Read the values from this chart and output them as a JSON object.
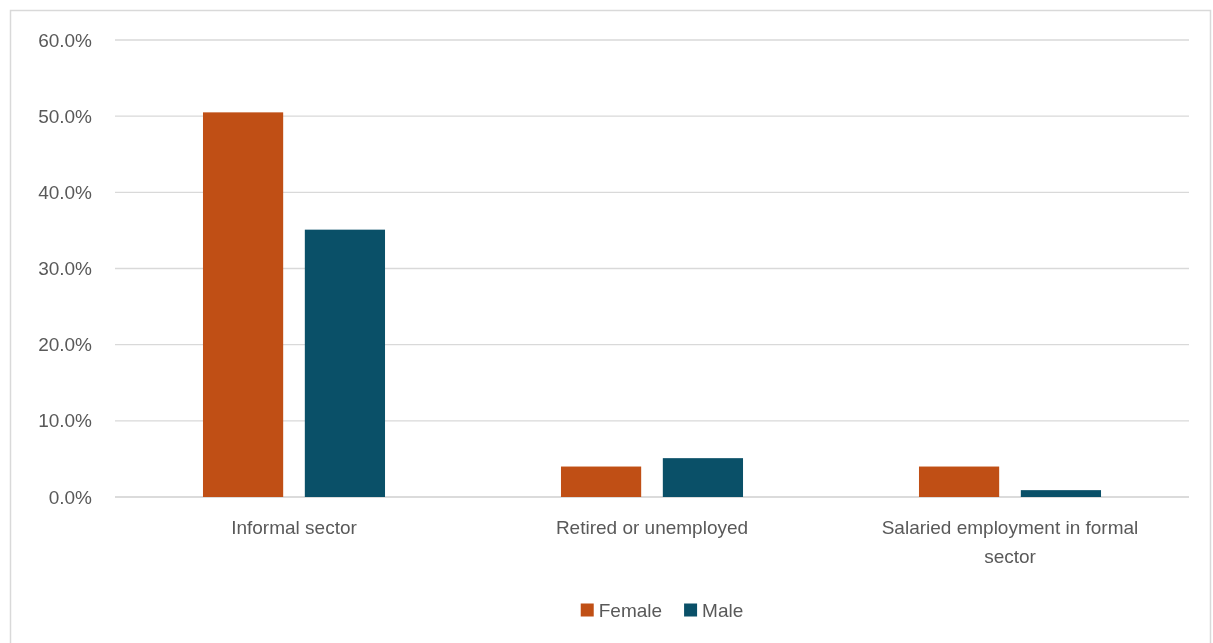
{
  "chart_data": {
    "type": "bar",
    "categories": [
      "Informal sector",
      "Retired or unemployed",
      "Salaried employment in formal sector"
    ],
    "series": [
      {
        "name": "Female",
        "color": "#c04f15",
        "values": [
          50.5,
          4.0,
          4.0
        ]
      },
      {
        "name": "Male",
        "color": "#0a5068",
        "values": [
          35.1,
          5.1,
          0.9
        ]
      }
    ],
    "ylim": [
      0,
      60
    ],
    "yticks": [
      {
        "value": 0,
        "label": "0.0%"
      },
      {
        "value": 10,
        "label": "10.0%"
      },
      {
        "value": 20,
        "label": "20.0%"
      },
      {
        "value": 30,
        "label": "30.0%"
      },
      {
        "value": 40,
        "label": "40.0%"
      },
      {
        "value": 50,
        "label": "50.0%"
      },
      {
        "value": 60,
        "label": "60.0%"
      }
    ],
    "grid": "y",
    "legend": "bottom"
  }
}
